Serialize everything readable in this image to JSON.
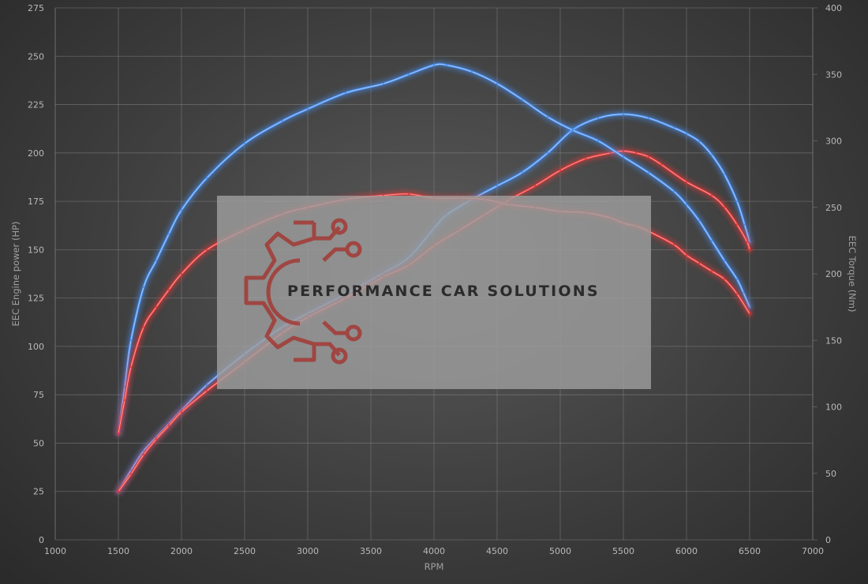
{
  "chart_data": {
    "type": "line",
    "title": "",
    "xlabel": "RPM",
    "ylabel_left": "EEC Engine power (HP)",
    "ylabel_right": "EEC Torque (Nm)",
    "xlim": [
      1000,
      7000
    ],
    "ylim_left": [
      0,
      275
    ],
    "ylim_right": [
      0,
      400
    ],
    "x_ticks": [
      "1000",
      "1500",
      "2000",
      "2500",
      "3000",
      "3500",
      "4000",
      "4500",
      "5000",
      "5500",
      "6000",
      "6500",
      "7000"
    ],
    "y_left_ticks": [
      "0",
      "25",
      "50",
      "75",
      "100",
      "125",
      "150",
      "175",
      "200",
      "225",
      "250",
      "275"
    ],
    "y_right_ticks": [
      "0",
      "50",
      "100",
      "150",
      "200",
      "250",
      "300",
      "350",
      "400"
    ],
    "grid": true,
    "legend": "none",
    "series": [
      {
        "axis": "left",
        "color": "#4a8ff0",
        "x": [
          1500,
          1600,
          1700,
          1800,
          1900,
          2000,
          2200,
          2500,
          2800,
          3000,
          3300,
          3600,
          3800,
          4000,
          4100,
          4300,
          4500,
          4700,
          4900,
          5100,
          5300,
          5500,
          5700,
          5900,
          6000,
          6100,
          6200,
          6300,
          6400,
          6460,
          6500
        ],
        "values": [
          25,
          36,
          46,
          53,
          60,
          67,
          80,
          96,
          110,
          117,
          127,
          138,
          146,
          161,
          168,
          176,
          183,
          190,
          200,
          212,
          218,
          220,
          218,
          213,
          210,
          206,
          199,
          189,
          175,
          163,
          154
        ]
      },
      {
        "axis": "left",
        "color": "#e23a3a",
        "x": [
          1500,
          1600,
          1700,
          1800,
          1900,
          2000,
          2200,
          2500,
          2800,
          3000,
          3300,
          3600,
          3800,
          4000,
          4200,
          4400,
          4600,
          4800,
          5000,
          5200,
          5400,
          5500,
          5600,
          5700,
          5800,
          6000,
          6200,
          6300,
          6400,
          6480,
          6500
        ],
        "values": [
          25,
          34,
          44,
          52,
          59,
          66,
          77,
          92,
          107,
          115,
          125,
          136,
          142,
          152,
          160,
          168,
          176,
          183,
          191,
          197,
          200,
          201,
          200,
          198,
          194,
          185,
          178,
          172,
          163,
          154,
          150
        ]
      },
      {
        "axis": "right",
        "color": "#4a8ff0",
        "x": [
          1500,
          1550,
          1600,
          1700,
          1800,
          1900,
          2000,
          2200,
          2500,
          2800,
          3000,
          3300,
          3600,
          3800,
          4000,
          4100,
          4300,
          4500,
          4700,
          4900,
          5100,
          5300,
          5500,
          5700,
          5900,
          6000,
          6100,
          6200,
          6300,
          6400,
          6450,
          6500
        ],
        "values": [
          80,
          115,
          150,
          190,
          210,
          230,
          248,
          272,
          298,
          315,
          324,
          336,
          343,
          350,
          357,
          357,
          352,
          343,
          331,
          318,
          308,
          300,
          288,
          276,
          262,
          252,
          240,
          225,
          210,
          196,
          186,
          175
        ]
      },
      {
        "axis": "right",
        "color": "#e23a3a",
        "x": [
          1500,
          1550,
          1600,
          1700,
          1800,
          1900,
          2000,
          2200,
          2500,
          2800,
          3000,
          3300,
          3600,
          3800,
          4000,
          4200,
          4400,
          4600,
          4800,
          5000,
          5200,
          5400,
          5500,
          5600,
          5700,
          5900,
          6000,
          6100,
          6200,
          6300,
          6400,
          6500
        ],
        "values": [
          80,
          105,
          130,
          160,
          175,
          188,
          200,
          218,
          233,
          245,
          250,
          256,
          259,
          260,
          257,
          257,
          256,
          252,
          250,
          247,
          246,
          242,
          238,
          236,
          232,
          222,
          214,
          208,
          202,
          196,
          185,
          170
        ]
      }
    ]
  },
  "watermark": {
    "text": "PERFORMANCE CAR SOLUTIONS",
    "panel_color": "#9e9e9e",
    "icon_color": "#a33a35",
    "icon": "gear-circuit-logo-icon"
  }
}
